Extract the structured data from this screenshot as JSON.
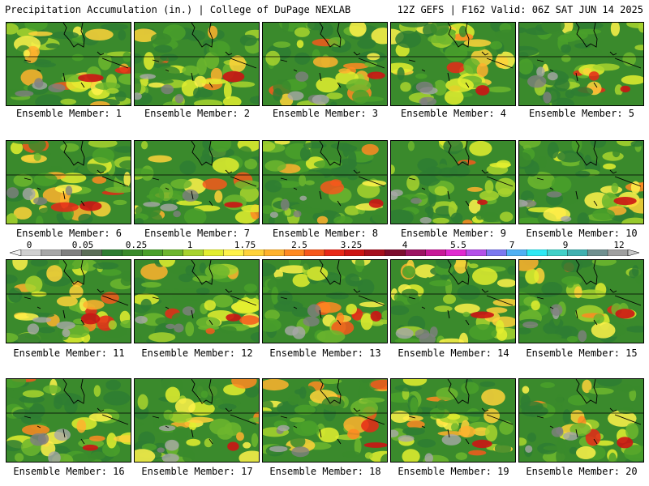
{
  "header": {
    "left": "Precipitation Accumulation (in.) | College of DuPage NEXLAB",
    "right": "12Z GEFS | F162 Valid: 06Z SAT JUN 14 2025"
  },
  "colorbar": {
    "labels": [
      "0",
      "0.05",
      "0.25",
      "1",
      "1.75",
      "2.5",
      "3.25",
      "4",
      "5.5",
      "7",
      "9",
      "12"
    ],
    "colors": [
      "#f2f2f2",
      "#d0d0d0",
      "#a8a8a8",
      "#808080",
      "#5c6e58",
      "#2e7d32",
      "#3a8a2c",
      "#4aa02a",
      "#6db62e",
      "#a8d32e",
      "#e3ee2f",
      "#fff24a",
      "#ffd23a",
      "#ffb22e",
      "#ff8a22",
      "#f6581c",
      "#e82818",
      "#cc1414",
      "#a60f1e",
      "#7c0d2e",
      "#9c1462",
      "#c81a98",
      "#e02ad0",
      "#b450e8",
      "#7c78f0",
      "#50b0f4",
      "#2ee8f4",
      "#40d0c8",
      "#40b0b0",
      "#709090",
      "#a0a0a0",
      "#c8c8c8"
    ]
  },
  "members": [
    {
      "label": "Ensemble Member: 1"
    },
    {
      "label": "Ensemble Member: 2"
    },
    {
      "label": "Ensemble Member: 3"
    },
    {
      "label": "Ensemble Member: 4"
    },
    {
      "label": "Ensemble Member: 5"
    },
    {
      "label": "Ensemble Member: 6"
    },
    {
      "label": "Ensemble Member: 7"
    },
    {
      "label": "Ensemble Member: 8"
    },
    {
      "label": "Ensemble Member: 9"
    },
    {
      "label": "Ensemble Member: 10"
    },
    {
      "label": "Ensemble Member: 11"
    },
    {
      "label": "Ensemble Member: 12"
    },
    {
      "label": "Ensemble Member: 13"
    },
    {
      "label": "Ensemble Member: 14"
    },
    {
      "label": "Ensemble Member: 15"
    },
    {
      "label": "Ensemble Member: 16"
    },
    {
      "label": "Ensemble Member: 17"
    },
    {
      "label": "Ensemble Member: 18"
    },
    {
      "label": "Ensemble Member: 19"
    },
    {
      "label": "Ensemble Member: 20"
    }
  ]
}
